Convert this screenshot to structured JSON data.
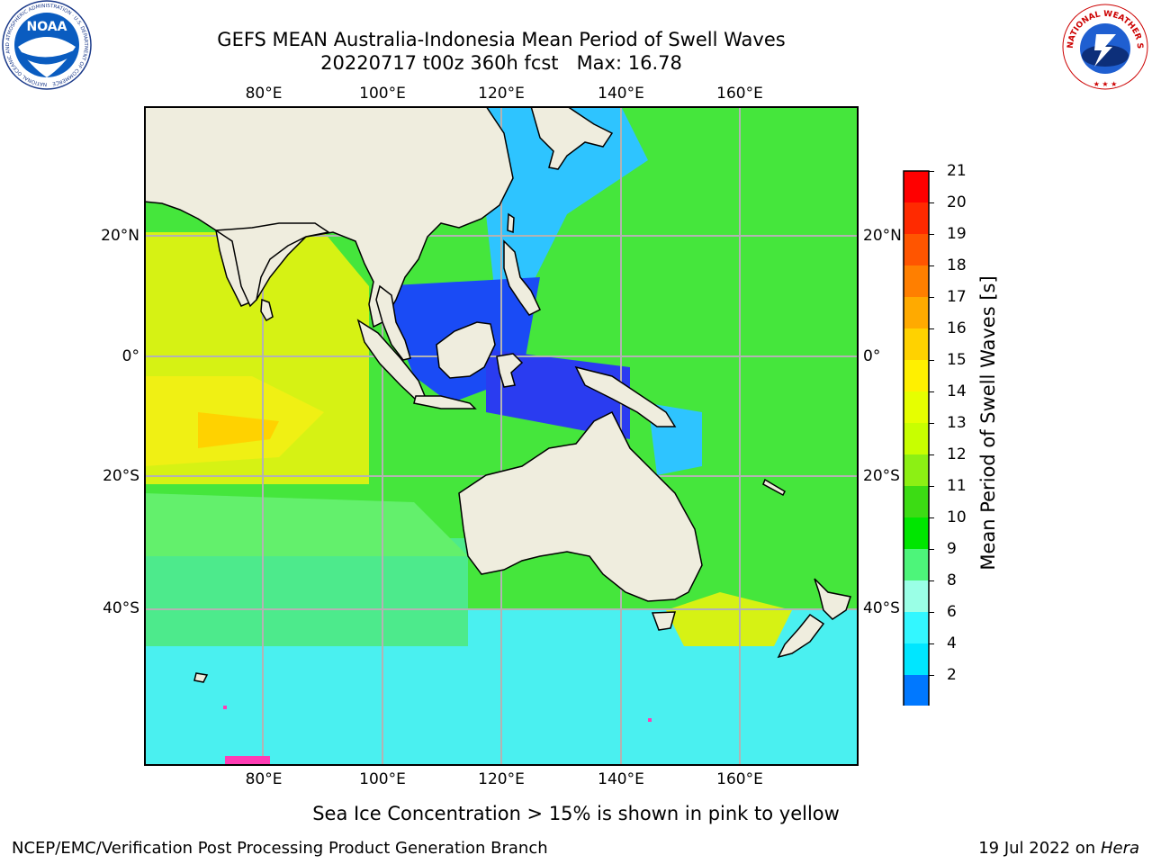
{
  "header": {
    "title_line1": "GEFS MEAN Australia-Indonesia Mean Period of Swell Waves",
    "title_line2": "20220717 t00z 360h fcst   Max: 16.78"
  },
  "logos": {
    "left": "noaa-logo",
    "right": "nws-logo",
    "left_text": "NOAA",
    "left_ring_text": "NATIONAL OCEANIC AND ATMOSPHERIC ADMINISTRATION · U.S. DEPARTMENT OF COMMERCE",
    "right_ring_text": "NATIONAL WEATHER SERVICE"
  },
  "map": {
    "lon_labels": [
      "80°E",
      "100°E",
      "120°E",
      "140°E",
      "160°E"
    ],
    "lat_labels_left": [
      "20°N",
      "0°",
      "20°S",
      "40°S"
    ],
    "lat_labels_right": [
      "20°N",
      "0°",
      "20°S",
      "40°S"
    ],
    "land_color": "#efedde",
    "grid_color": "#b3b3b3"
  },
  "colorbar": {
    "label": "Mean Period of Swell Waves [s]",
    "ticks": [
      "21",
      "20",
      "19",
      "18",
      "17",
      "16",
      "15",
      "14",
      "13",
      "12",
      "11",
      "10",
      "9",
      "8",
      "6",
      "4",
      "2"
    ],
    "colors_top_to_bottom": [
      "#ff0000",
      "#ff2a00",
      "#ff5500",
      "#ff7f00",
      "#ffaa00",
      "#ffd200",
      "#fff000",
      "#e6ff00",
      "#c8ff00",
      "#8cf014",
      "#3cdc14",
      "#00e600",
      "#4df57a",
      "#9affe6",
      "#33f7ff",
      "#00e6ff",
      "#0078ff"
    ],
    "under_color": "#0000ff"
  },
  "notes": {
    "sea_ice": "Sea Ice Concentration > 15% is shown in pink to yellow"
  },
  "footer": {
    "left": "NCEP/EMC/Verification Post Processing Product Generation Branch",
    "right_prefix": "19 Jul 2022 on ",
    "right_machine": "Hera"
  }
}
